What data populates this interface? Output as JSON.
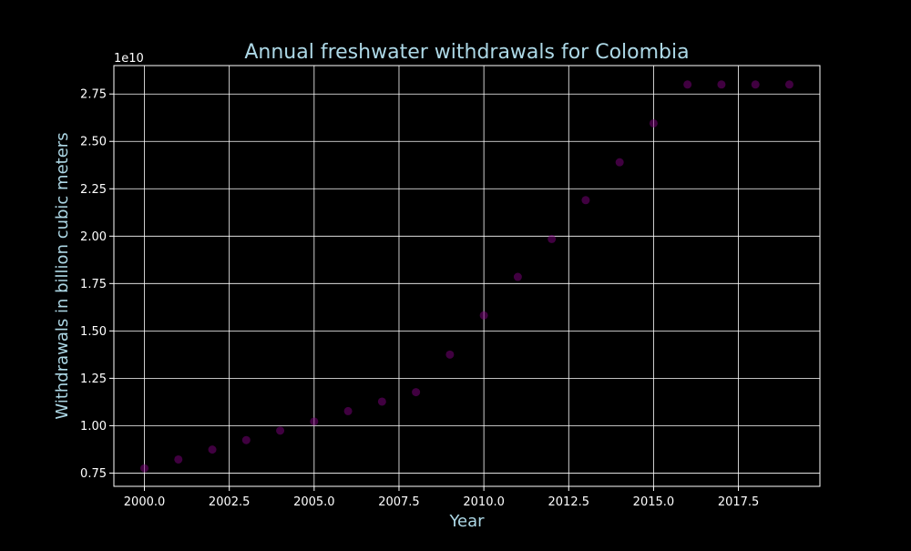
{
  "chart_data": {
    "type": "scatter",
    "title": "Annual freshwater withdrawals for Colombia",
    "xlabel": "Year",
    "ylabel": "Withdrawals in billion cubic meters",
    "offset_text": "1e10",
    "xlim": [
      1999.1,
      2019.9
    ],
    "ylim": [
      6800000000.0,
      29000000000.0
    ],
    "x_ticks": [
      2000,
      2002.5,
      2005,
      2007.5,
      2010,
      2012.5,
      2015,
      2017.5
    ],
    "x_tick_labels": [
      "2000.0",
      "2002.5",
      "2005.0",
      "2007.5",
      "2010.0",
      "2012.5",
      "2015.0",
      "2017.5"
    ],
    "y_ticks": [
      7500000000.0,
      10000000000.0,
      12500000000.0,
      15000000000.0,
      17500000000.0,
      20000000000.0,
      22500000000.0,
      25000000000.0,
      27500000000.0
    ],
    "y_tick_labels": [
      "0.75",
      "1.00",
      "1.25",
      "1.50",
      "1.75",
      "2.00",
      "2.25",
      "2.50",
      "2.75"
    ],
    "grid": true,
    "x": [
      2000,
      2001,
      2002,
      2003,
      2004,
      2005,
      2006,
      2007,
      2008,
      2009,
      2010,
      2011,
      2012,
      2013,
      2014,
      2015,
      2016,
      2017,
      2018,
      2019
    ],
    "y": [
      7750000000.0,
      8220000000.0,
      8740000000.0,
      9240000000.0,
      9740000000.0,
      10220000000.0,
      10770000000.0,
      11270000000.0,
      11770000000.0,
      13750000000.0,
      15820000000.0,
      17850000000.0,
      19850000000.0,
      21900000000.0,
      23900000000.0,
      25950000000.0,
      28000000000.0,
      28000000000.0,
      28000000000.0,
      28000000000.0
    ],
    "colors": {
      "background": "#000000",
      "axes_face": "#000000",
      "spine": "#ffffff",
      "grid": "#ffffff",
      "tick_label": "#ffffff",
      "title": "#add8e6",
      "axis_label": "#add8e6",
      "marker": "#800080"
    }
  }
}
